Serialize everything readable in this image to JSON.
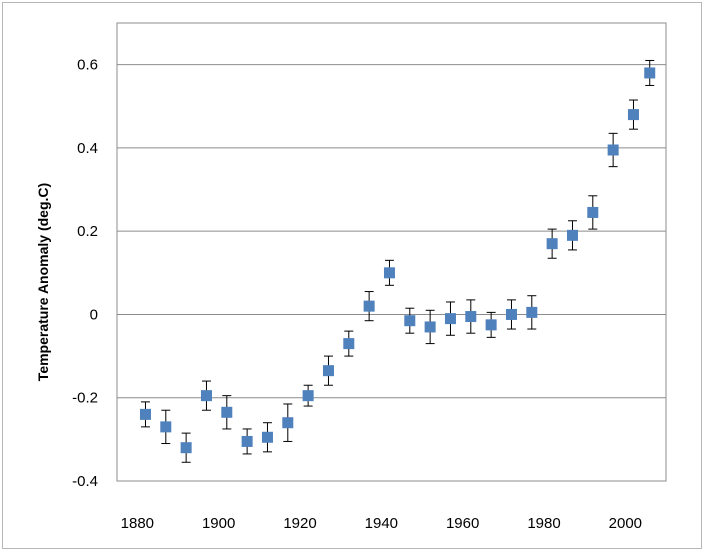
{
  "chart_data": {
    "type": "scatter",
    "title": "",
    "xlabel": "",
    "ylabel": "Temperature Anomaly (deg.C)",
    "xlim": [
      1875,
      2010
    ],
    "ylim": [
      -0.4,
      0.7
    ],
    "x_ticks": [
      1880,
      1900,
      1920,
      1940,
      1960,
      1980,
      2000
    ],
    "y_ticks": [
      -0.4,
      -0.2,
      0,
      0.2,
      0.4,
      0.6
    ],
    "y_tick_labels": [
      "-0.4",
      "-0.2",
      "0",
      "0.2",
      "0.4",
      "0.6"
    ],
    "grid": "horizontal",
    "legend": "none",
    "marker_color": "#4f81bd",
    "points": [
      {
        "x": 1882,
        "y": -0.24,
        "err": 0.03
      },
      {
        "x": 1887,
        "y": -0.27,
        "err": 0.04
      },
      {
        "x": 1892,
        "y": -0.32,
        "err": 0.035
      },
      {
        "x": 1897,
        "y": -0.195,
        "err": 0.035
      },
      {
        "x": 1902,
        "y": -0.235,
        "err": 0.04
      },
      {
        "x": 1907,
        "y": -0.305,
        "err": 0.03
      },
      {
        "x": 1912,
        "y": -0.295,
        "err": 0.035
      },
      {
        "x": 1917,
        "y": -0.26,
        "err": 0.045
      },
      {
        "x": 1922,
        "y": -0.195,
        "err": 0.025
      },
      {
        "x": 1927,
        "y": -0.135,
        "err": 0.035
      },
      {
        "x": 1932,
        "y": -0.07,
        "err": 0.03
      },
      {
        "x": 1937,
        "y": 0.02,
        "err": 0.035
      },
      {
        "x": 1942,
        "y": 0.1,
        "err": 0.03
      },
      {
        "x": 1947,
        "y": -0.015,
        "err": 0.03
      },
      {
        "x": 1952,
        "y": -0.03,
        "err": 0.04
      },
      {
        "x": 1957,
        "y": -0.01,
        "err": 0.04
      },
      {
        "x": 1962,
        "y": -0.005,
        "err": 0.04
      },
      {
        "x": 1967,
        "y": -0.025,
        "err": 0.03
      },
      {
        "x": 1972,
        "y": 0.0,
        "err": 0.035
      },
      {
        "x": 1977,
        "y": 0.005,
        "err": 0.04
      },
      {
        "x": 1982,
        "y": 0.17,
        "err": 0.035
      },
      {
        "x": 1987,
        "y": 0.19,
        "err": 0.035
      },
      {
        "x": 1992,
        "y": 0.245,
        "err": 0.04
      },
      {
        "x": 1997,
        "y": 0.395,
        "err": 0.04
      },
      {
        "x": 2002,
        "y": 0.48,
        "err": 0.035
      },
      {
        "x": 2006,
        "y": 0.58,
        "err": 0.03
      }
    ]
  }
}
